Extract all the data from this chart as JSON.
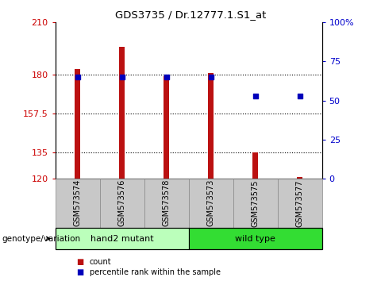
{
  "title": "GDS3735 / Dr.12777.1.S1_at",
  "categories": [
    "GSM573574",
    "GSM573576",
    "GSM573578",
    "GSM573573",
    "GSM573575",
    "GSM573577"
  ],
  "bar_values": [
    183,
    196,
    179,
    181,
    135,
    121
  ],
  "bar_bottom": 120,
  "percentile_values": [
    65,
    65,
    65,
    65,
    53,
    53
  ],
  "ylim_left": [
    120,
    210
  ],
  "ylim_right": [
    0,
    100
  ],
  "yticks_left": [
    120,
    135,
    157.5,
    180,
    210
  ],
  "ytick_labels_left": [
    "120",
    "135",
    "157.5",
    "180",
    "210"
  ],
  "yticks_right": [
    0,
    25,
    50,
    75,
    100
  ],
  "ytick_labels_right": [
    "0",
    "25",
    "50",
    "75",
    "100%"
  ],
  "bar_color": "#bb1111",
  "dot_color": "#0000bb",
  "bar_width": 0.12,
  "groups": [
    {
      "label": "hand2 mutant",
      "indices": [
        0,
        1,
        2
      ],
      "color": "#bbffbb"
    },
    {
      "label": "wild type",
      "indices": [
        3,
        4,
        5
      ],
      "color": "#33dd33"
    }
  ],
  "group_row_label": "genotype/variation",
  "legend_items": [
    {
      "label": "count",
      "color": "#bb1111"
    },
    {
      "label": "percentile rank within the sample",
      "color": "#0000bb"
    }
  ],
  "tick_color_left": "#cc0000",
  "tick_color_right": "#0000cc",
  "bg_xtick": "#c8c8c8",
  "grid_yticks": [
    135,
    157.5,
    180
  ]
}
